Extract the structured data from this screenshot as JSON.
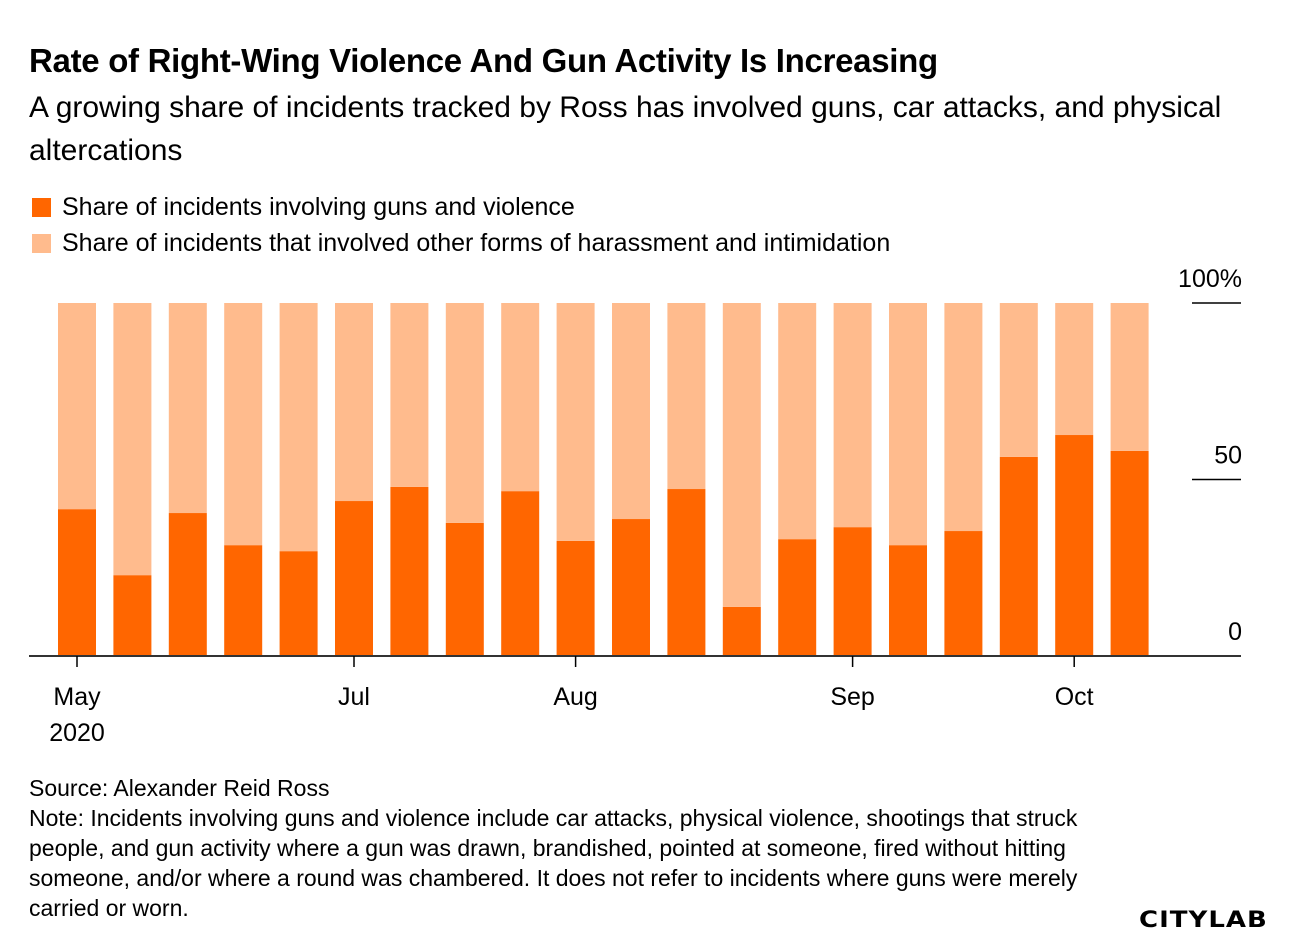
{
  "chart_data": {
    "type": "bar",
    "stacked": true,
    "title": "Rate of Right-Wing Violence And Gun Activity Is Increasing",
    "subtitle": "A growing share of incidents tracked by Ross has involved guns, car attacks, and physical altercations",
    "series": [
      {
        "name": "Share of incidents involving guns and violence",
        "color": "#ff6600",
        "values": [
          41.6,
          22.9,
          40.5,
          31.4,
          29.7,
          43.9,
          47.9,
          37.7,
          46.7,
          32.6,
          38.8,
          47.3,
          13.9,
          33.1,
          36.5,
          31.4,
          35.4,
          56.4,
          62.6,
          58.1
        ]
      },
      {
        "name": "Share of incidents that involved other forms of harassment and intimidation",
        "color": "#ffbb8d",
        "values": [
          58.4,
          77.1,
          59.5,
          68.6,
          70.3,
          56.1,
          52.1,
          62.3,
          53.3,
          67.4,
          61.2,
          52.7,
          86.1,
          66.9,
          63.5,
          68.6,
          64.6,
          43.6,
          37.4,
          41.9
        ]
      }
    ],
    "x_ticks": [
      {
        "bar_index": 0,
        "label": "May",
        "sublabel": "2020"
      },
      {
        "bar_index": 5,
        "label": "Jul"
      },
      {
        "bar_index": 9,
        "label": "Aug"
      },
      {
        "bar_index": 14,
        "label": "Sep"
      },
      {
        "bar_index": 18,
        "label": "Oct"
      }
    ],
    "y_ticks": [
      {
        "value": 100,
        "label": "100%"
      },
      {
        "value": 50,
        "label": "50"
      },
      {
        "value": 0,
        "label": "0"
      }
    ],
    "ylim": [
      0,
      100
    ],
    "y_axis_side": "right",
    "legend_position": "top-left"
  },
  "footer": {
    "source": "Source: Alexander Reid Ross",
    "note": "Note: Incidents involving guns and violence include car attacks, physical violence, shootings that struck people, and gun activity where a gun was drawn, brandished, pointed at someone, fired without hitting someone, and/or where a round was chambered. It does not refer to incidents where guns were merely carried or worn.",
    "logo": "CITYLAB"
  }
}
